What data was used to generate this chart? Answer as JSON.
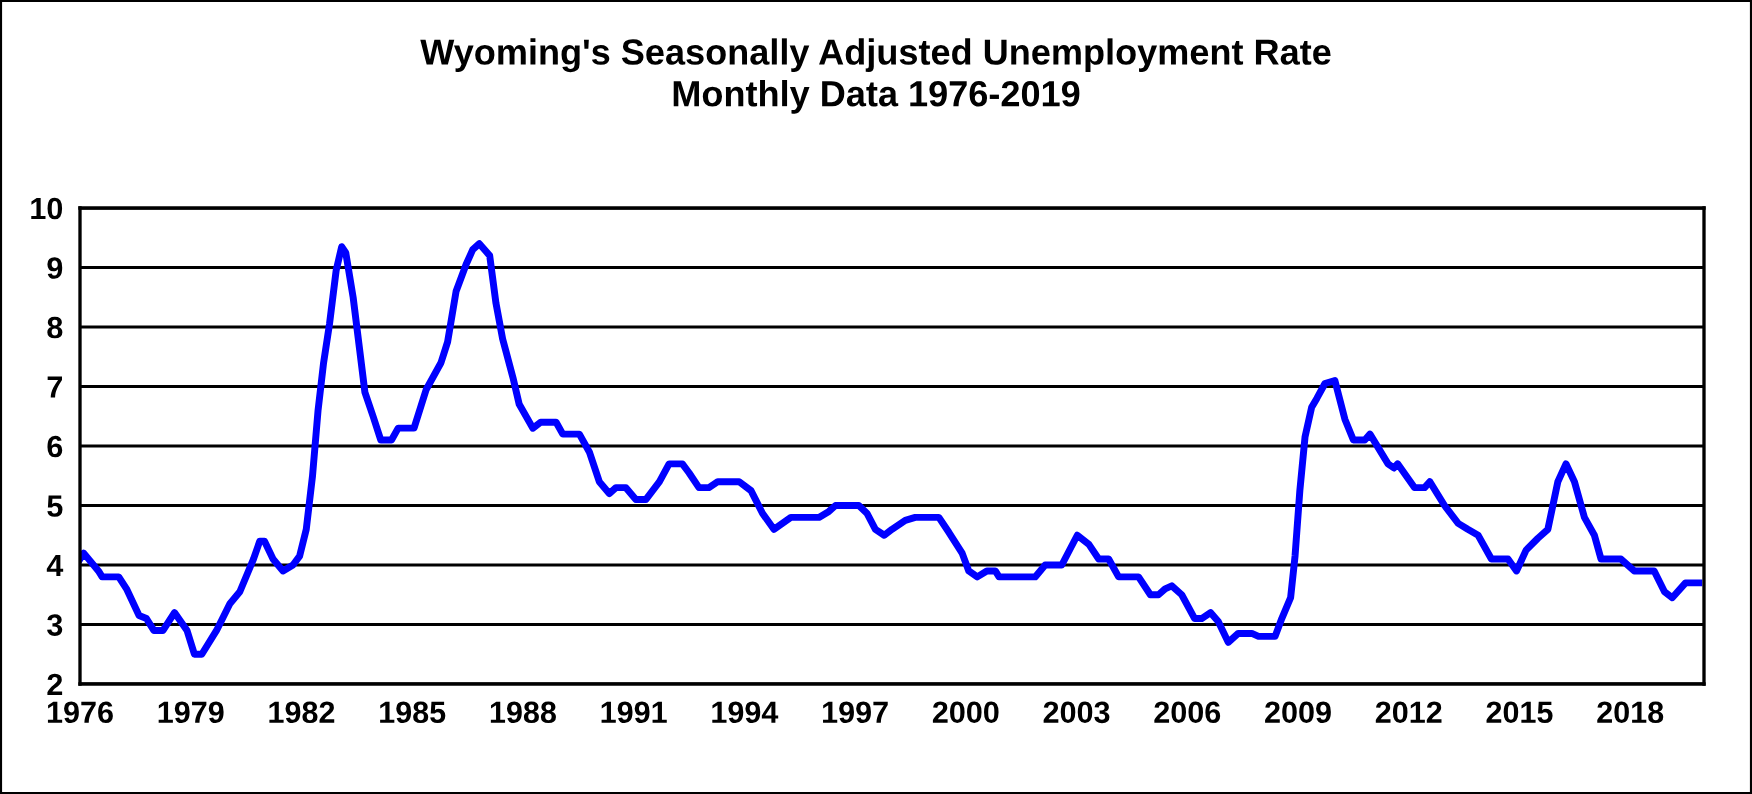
{
  "chart_data": {
    "type": "line",
    "title": "Wyoming's Seasonally Adjusted Unemployment Rate\nMonthly Data 1976-2019",
    "xlim": [
      1976,
      2020
    ],
    "xticks": [
      1976,
      1979,
      1982,
      1985,
      1988,
      1991,
      1994,
      1997,
      2000,
      2003,
      2006,
      2009,
      2012,
      2015,
      2018
    ],
    "ylim": [
      2,
      10
    ],
    "yticks": [
      2,
      3,
      4,
      5,
      6,
      7,
      8,
      9,
      10
    ],
    "grid": "y",
    "marker": "none",
    "line_style": "solid",
    "series": [
      {
        "color": "#0000ff",
        "x": [
          1976.0,
          1976.1,
          1976.5,
          1976.6,
          1977.05,
          1977.26,
          1977.6,
          1977.8,
          1978.0,
          1978.25,
          1978.56,
          1978.9,
          1979.1,
          1979.3,
          1979.7,
          1980.06,
          1980.33,
          1980.7,
          1980.87,
          1981.0,
          1981.23,
          1981.5,
          1981.77,
          1981.95,
          1982.13,
          1982.3,
          1982.45,
          1982.6,
          1982.76,
          1982.94,
          1983.09,
          1983.2,
          1983.4,
          1983.58,
          1983.72,
          1983.94,
          1984.15,
          1984.44,
          1984.62,
          1985.05,
          1985.38,
          1985.78,
          1985.96,
          1986.19,
          1986.46,
          1986.64,
          1986.82,
          1987.1,
          1987.27,
          1987.45,
          1987.73,
          1987.9,
          1988.27,
          1988.48,
          1988.9,
          1989.08,
          1989.53,
          1989.8,
          1990.07,
          1990.34,
          1990.52,
          1990.79,
          1991.06,
          1991.33,
          1991.7,
          1991.96,
          1992.32,
          1992.5,
          1992.77,
          1993.04,
          1993.28,
          1993.86,
          1994.18,
          1994.49,
          1994.8,
          1995.03,
          1995.26,
          1996.02,
          1996.29,
          1996.47,
          1997.1,
          1997.32,
          1997.55,
          1997.79,
          1998.0,
          1998.36,
          1998.63,
          1999.27,
          1999.54,
          1999.9,
          2000.08,
          2000.31,
          2000.57,
          2000.8,
          2000.9,
          2001.88,
          2002.15,
          2002.6,
          2003.02,
          2003.33,
          2003.6,
          2003.87,
          2004.14,
          2004.68,
          2005.0,
          2005.22,
          2005.4,
          2005.58,
          2005.85,
          2006.2,
          2006.39,
          2006.63,
          2006.84,
          2007.11,
          2007.38,
          2007.75,
          2007.93,
          2008.38,
          2008.56,
          2008.8,
          2008.92,
          2009.05,
          2009.19,
          2009.37,
          2009.51,
          2009.73,
          2010.0,
          2010.27,
          2010.5,
          2010.81,
          2010.95,
          2011.44,
          2011.6,
          2011.7,
          2012.16,
          2012.43,
          2012.57,
          2012.97,
          2013.34,
          2013.6,
          2013.88,
          2014.24,
          2014.69,
          2014.92,
          2015.18,
          2015.5,
          2015.77,
          2016.04,
          2016.26,
          2016.49,
          2016.76,
          2017.03,
          2017.21,
          2017.48,
          2017.75,
          2018.11,
          2018.65,
          2018.93,
          2019.14,
          2019.5,
          2019.86
        ],
        "values": [
          4.1,
          4.2,
          3.9,
          3.8,
          3.8,
          3.6,
          3.15,
          3.1,
          2.9,
          2.9,
          3.2,
          2.9,
          2.5,
          2.5,
          2.9,
          3.35,
          3.55,
          4.1,
          4.4,
          4.4,
          4.1,
          3.9,
          4.0,
          4.15,
          4.6,
          5.5,
          6.6,
          7.4,
          8.05,
          8.95,
          9.35,
          9.25,
          8.5,
          7.6,
          6.9,
          6.5,
          6.1,
          6.1,
          6.3,
          6.3,
          6.95,
          7.4,
          7.75,
          8.6,
          9.05,
          9.3,
          9.4,
          9.2,
          8.4,
          7.8,
          7.15,
          6.7,
          6.3,
          6.4,
          6.4,
          6.2,
          6.2,
          5.9,
          5.4,
          5.2,
          5.3,
          5.3,
          5.1,
          5.1,
          5.4,
          5.7,
          5.7,
          5.55,
          5.3,
          5.3,
          5.4,
          5.4,
          5.25,
          4.87,
          4.6,
          4.7,
          4.8,
          4.8,
          4.9,
          5.0,
          5.0,
          4.87,
          4.6,
          4.5,
          4.6,
          4.75,
          4.8,
          4.8,
          4.55,
          4.2,
          3.9,
          3.8,
          3.9,
          3.9,
          3.8,
          3.8,
          4.0,
          4.0,
          4.5,
          4.35,
          4.1,
          4.1,
          3.8,
          3.8,
          3.5,
          3.5,
          3.6,
          3.65,
          3.5,
          3.1,
          3.1,
          3.2,
          3.05,
          2.7,
          2.85,
          2.85,
          2.8,
          2.8,
          3.1,
          3.45,
          4.15,
          5.25,
          6.15,
          6.65,
          6.8,
          7.05,
          7.1,
          6.45,
          6.1,
          6.1,
          6.2,
          5.7,
          5.63,
          5.7,
          5.3,
          5.3,
          5.4,
          5.0,
          4.7,
          4.6,
          4.5,
          4.1,
          4.1,
          3.9,
          4.25,
          4.45,
          4.6,
          5.4,
          5.7,
          5.4,
          4.8,
          4.5,
          4.1,
          4.1,
          4.1,
          3.9,
          3.9,
          3.55,
          3.45,
          3.7,
          3.7
        ]
      }
    ]
  }
}
